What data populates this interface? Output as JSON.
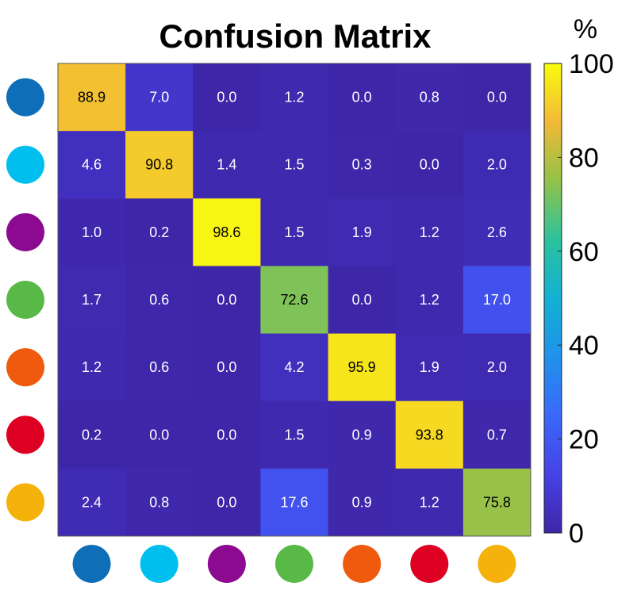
{
  "chart_data": {
    "type": "heatmap",
    "title": "Confusion Matrix",
    "colorbar": {
      "label": "%",
      "range": [
        0,
        100
      ],
      "ticks": [
        "0",
        "20",
        "40",
        "60",
        "80",
        "100"
      ]
    },
    "class_markers": [
      {
        "color": "#0E6EB8"
      },
      {
        "color": "#00BFEF"
      },
      {
        "color": "#8C0A8F"
      },
      {
        "color": "#58B947"
      },
      {
        "color": "#EF5A0E"
      },
      {
        "color": "#DE0023"
      },
      {
        "color": "#F5B20A"
      }
    ],
    "values": [
      [
        88.9,
        7.0,
        0.0,
        1.2,
        0.0,
        0.8,
        0.0
      ],
      [
        4.6,
        90.8,
        1.4,
        1.5,
        0.3,
        0.0,
        2.0
      ],
      [
        1.0,
        0.2,
        98.6,
        1.5,
        1.9,
        1.2,
        2.6
      ],
      [
        1.7,
        0.6,
        0.0,
        72.6,
        0.0,
        1.2,
        17.0
      ],
      [
        1.2,
        0.6,
        0.0,
        4.2,
        95.9,
        1.9,
        2.0
      ],
      [
        0.2,
        0.0,
        0.0,
        1.5,
        0.9,
        93.8,
        0.7
      ],
      [
        2.4,
        0.8,
        0.0,
        17.6,
        0.9,
        1.2,
        75.8
      ]
    ],
    "colormap": "parula"
  }
}
